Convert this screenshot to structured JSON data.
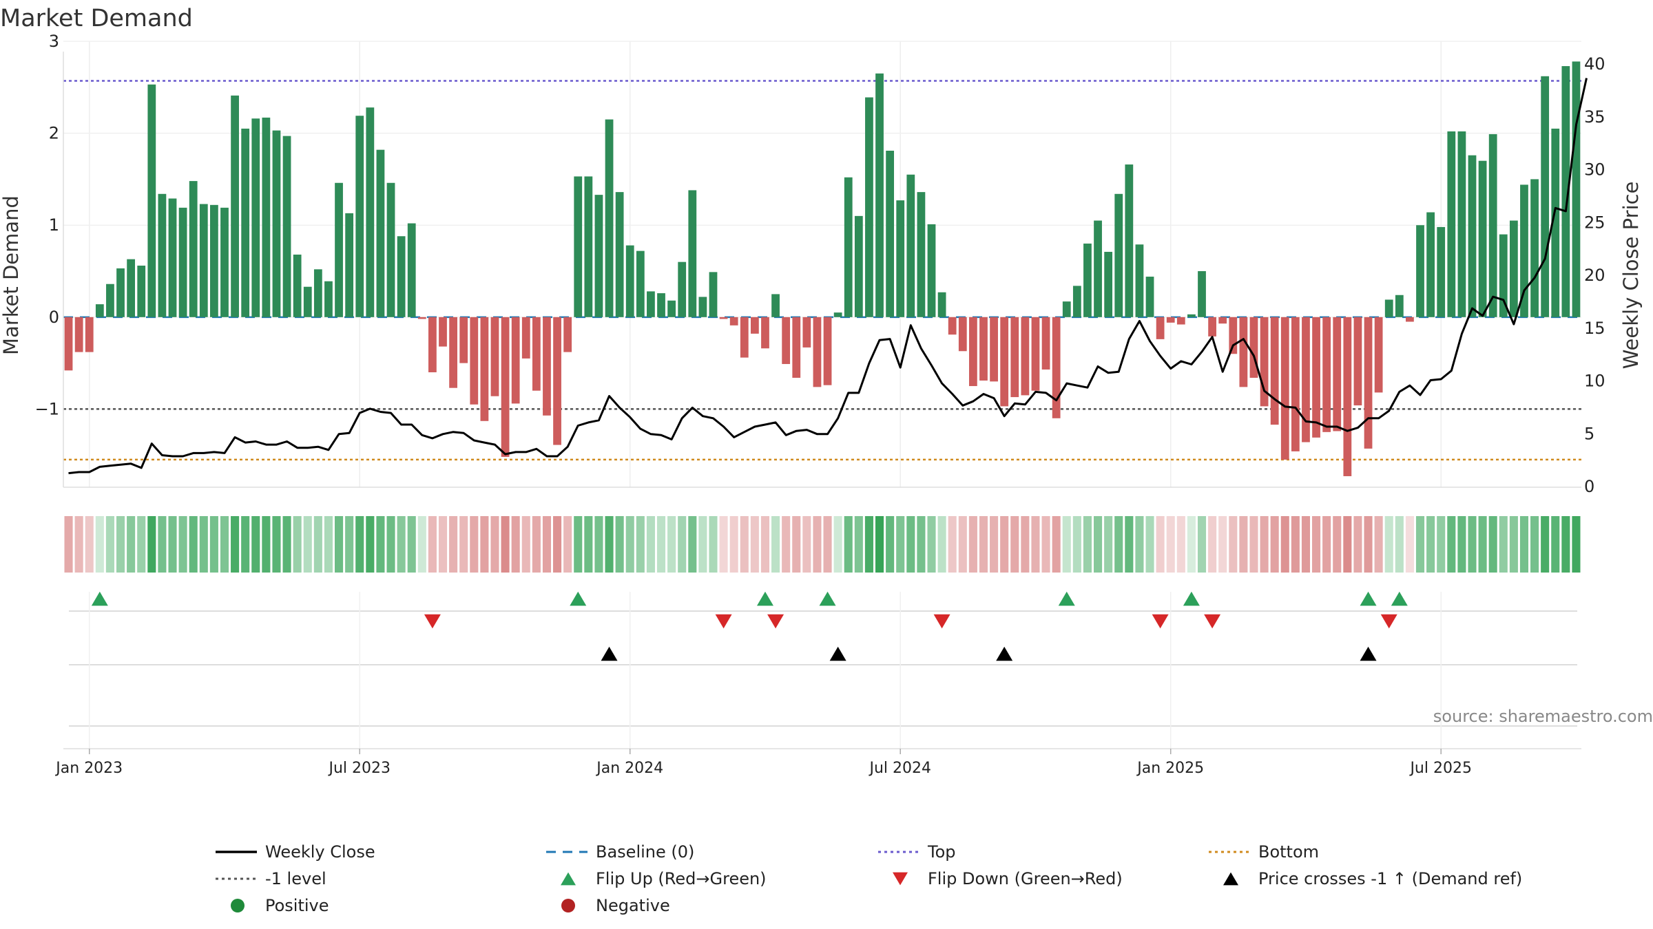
{
  "chart_data": {
    "type": "bar+line",
    "title": "Market Demand",
    "ylabel_left": "Market Demand",
    "ylabel_right": "Weekly Close Price",
    "ylim_left": [
      -1.85,
      3.0
    ],
    "ylim_right": [
      0,
      40
    ],
    "left_ticks": [
      3,
      2,
      1,
      0,
      -1
    ],
    "left_tick_labels": [
      "3",
      "2",
      "1",
      "0",
      "−1"
    ],
    "right_ticks": [
      0,
      5,
      10,
      15,
      20,
      25,
      30,
      35,
      40
    ],
    "x_tick_labels": [
      "Jan 2023",
      "Jul 2023",
      "Jan 2024",
      "Jul 2024",
      "Jan 2025",
      "Jul 2025"
    ],
    "x_tick_week_index": [
      2,
      28,
      54,
      80,
      106,
      132
    ],
    "reference_lines": {
      "top": 2.57,
      "bottom": -1.55,
      "minus_one": -1.0,
      "baseline": 0
    },
    "demand_weekly": [
      -0.58,
      -0.38,
      -0.38,
      0.14,
      0.36,
      0.53,
      0.63,
      0.56,
      2.53,
      1.34,
      1.29,
      1.19,
      1.48,
      1.23,
      1.22,
      1.19,
      2.41,
      2.05,
      2.16,
      2.17,
      2.03,
      1.97,
      0.68,
      0.33,
      0.52,
      0.39,
      1.46,
      1.13,
      2.19,
      2.28,
      1.82,
      1.46,
      0.88,
      1.02,
      -0.02,
      -0.6,
      -0.32,
      -0.77,
      -0.5,
      -0.95,
      -1.13,
      -0.86,
      -1.52,
      -0.94,
      -0.45,
      -0.8,
      -1.07,
      -1.39,
      -0.38,
      1.53,
      1.53,
      1.33,
      2.15,
      1.36,
      0.78,
      0.72,
      0.28,
      0.26,
      0.18,
      0.6,
      1.38,
      0.22,
      0.49,
      -0.02,
      -0.09,
      -0.44,
      -0.18,
      -0.34,
      0.25,
      -0.51,
      -0.66,
      -0.33,
      -0.76,
      -0.74,
      0.05,
      1.52,
      1.1,
      2.39,
      2.65,
      1.81,
      1.27,
      1.55,
      1.36,
      1.01,
      0.27,
      -0.19,
      -0.37,
      -0.75,
      -0.69,
      -0.7,
      -0.97,
      -0.87,
      -0.85,
      -0.8,
      -0.57,
      -1.1,
      0.17,
      0.34,
      0.8,
      1.05,
      0.71,
      1.34,
      1.66,
      0.79,
      0.44,
      -0.24,
      -0.06,
      -0.08,
      0.03,
      0.5,
      -0.21,
      -0.07,
      -0.4,
      -0.76,
      -0.66,
      -0.97,
      -1.17,
      -1.55,
      -1.46,
      -1.36,
      -1.31,
      -1.25,
      -1.24,
      -1.73,
      -0.96,
      -1.43,
      -0.82,
      0.19,
      0.24,
      -0.05,
      1.0,
      1.14,
      0.98,
      2.02,
      2.02,
      1.76,
      1.7,
      1.99,
      0.9,
      1.05,
      1.44,
      1.5,
      2.62,
      2.05,
      2.73,
      2.78
    ],
    "close_weekly": [
      1.2,
      1.3,
      1.3,
      1.8,
      1.9,
      2.0,
      2.1,
      1.7,
      4.0,
      2.9,
      2.8,
      2.8,
      3.1,
      3.1,
      3.2,
      3.1,
      4.6,
      4.1,
      4.2,
      3.9,
      3.9,
      4.2,
      3.6,
      3.6,
      3.7,
      3.4,
      4.9,
      5.0,
      6.9,
      7.3,
      7.0,
      6.9,
      5.8,
      5.8,
      4.8,
      4.5,
      4.9,
      5.1,
      5.0,
      4.3,
      4.1,
      3.9,
      3.0,
      3.2,
      3.2,
      3.5,
      2.8,
      2.8,
      3.7,
      5.7,
      6.0,
      6.2,
      8.5,
      7.4,
      6.5,
      5.4,
      4.9,
      4.8,
      4.4,
      6.4,
      7.4,
      6.6,
      6.4,
      5.6,
      4.6,
      5.1,
      5.6,
      5.8,
      6.0,
      4.8,
      5.2,
      5.3,
      4.9,
      4.9,
      6.4,
      8.8,
      8.8,
      11.6,
      13.8,
      13.9,
      11.2,
      15.2,
      13.0,
      11.4,
      9.7,
      8.7,
      7.6,
      8.0,
      8.7,
      8.3,
      6.6,
      7.8,
      7.7,
      8.9,
      8.8,
      8.1,
      9.7,
      9.5,
      9.3,
      11.3,
      10.7,
      10.8,
      13.9,
      15.6,
      13.7,
      12.3,
      11.1,
      11.8,
      11.5,
      12.7,
      14.1,
      10.8,
      13.3,
      13.9,
      12.3,
      9.0,
      8.2,
      7.5,
      7.4,
      6.1,
      6.0,
      5.6,
      5.6,
      5.2,
      5.5,
      6.4,
      6.4,
      7.1,
      8.9,
      9.5,
      8.6,
      10.0,
      10.1,
      10.9,
      14.4,
      16.8,
      16.1,
      17.9,
      17.6,
      15.3,
      18.5,
      19.7,
      21.5,
      26.3,
      26.0,
      34.2,
      38.6
    ],
    "heat_strip_levels": [
      -0.4,
      -0.3,
      -0.2,
      0.1,
      0.3,
      0.4,
      0.5,
      0.4,
      0.9,
      0.6,
      0.6,
      0.55,
      0.7,
      0.6,
      0.6,
      0.55,
      0.85,
      0.75,
      0.8,
      0.8,
      0.75,
      0.75,
      0.4,
      0.25,
      0.35,
      0.3,
      0.65,
      0.55,
      0.8,
      0.85,
      0.7,
      0.65,
      0.5,
      0.55,
      0.1,
      -0.3,
      -0.25,
      -0.35,
      -0.3,
      -0.4,
      -0.45,
      -0.4,
      -0.6,
      -0.45,
      -0.3,
      -0.4,
      -0.45,
      -0.55,
      -0.3,
      0.65,
      0.65,
      0.6,
      0.8,
      0.6,
      0.45,
      0.4,
      0.25,
      0.2,
      0.2,
      0.35,
      0.6,
      0.2,
      0.3,
      -0.1,
      -0.15,
      -0.25,
      -0.2,
      -0.25,
      0.2,
      -0.3,
      -0.35,
      -0.25,
      -0.35,
      -0.35,
      0.1,
      0.65,
      0.55,
      0.85,
      0.95,
      0.7,
      0.55,
      0.65,
      0.6,
      0.45,
      0.2,
      -0.2,
      -0.25,
      -0.35,
      -0.35,
      -0.35,
      -0.4,
      -0.4,
      -0.4,
      -0.35,
      -0.3,
      -0.45,
      0.15,
      0.25,
      0.4,
      0.5,
      0.4,
      0.6,
      0.7,
      0.45,
      0.3,
      -0.15,
      -0.1,
      -0.1,
      0.05,
      0.35,
      -0.15,
      -0.1,
      -0.25,
      -0.35,
      -0.3,
      -0.4,
      -0.45,
      -0.55,
      -0.5,
      -0.5,
      -0.45,
      -0.45,
      -0.45,
      -0.6,
      -0.4,
      -0.5,
      -0.35,
      0.15,
      0.2,
      -0.05,
      0.5,
      0.5,
      0.45,
      0.7,
      0.7,
      0.65,
      0.65,
      0.7,
      0.45,
      0.5,
      0.6,
      0.6,
      0.85,
      0.75,
      0.85,
      0.9
    ],
    "flip_up_weeks": [
      3,
      49,
      67,
      73,
      96,
      108,
      125,
      128
    ],
    "flip_down_weeks": [
      35,
      63,
      68,
      84,
      105,
      110,
      127
    ],
    "price_cross_weeks": [
      52,
      74,
      90,
      125
    ],
    "legend": [
      {
        "label": "Weekly Close",
        "style": "line",
        "color": "#000000"
      },
      {
        "label": "Baseline (0)",
        "style": "dash",
        "color": "#1f77b4"
      },
      {
        "label": "Top",
        "style": "dot",
        "color": "#6a5acd"
      },
      {
        "label": "Bottom",
        "style": "dot",
        "color": "#d08a1c"
      },
      {
        "label": "-1 level",
        "style": "dot",
        "color": "#555555"
      },
      {
        "label": "Flip Up (Red→Green)",
        "style": "tri-up",
        "color": "#2ca05a"
      },
      {
        "label": "Flip Down (Green→Red)",
        "style": "tri-down",
        "color": "#d62728"
      },
      {
        "label": "Price crosses -1 ↑ (Demand ref)",
        "style": "tri-up",
        "color": "#000000"
      },
      {
        "label": "Positive",
        "style": "circle",
        "color": "#1f8a3a"
      },
      {
        "label": "Negative",
        "style": "circle",
        "color": "#b22222"
      }
    ],
    "source_note": "source: sharemaestro.com"
  },
  "colors": {
    "positive_bar": "#2e8b57",
    "negative_bar": "#cd5c5c",
    "close_line": "#000000",
    "baseline": "#1f77b4",
    "top": "#6a5acd",
    "bottom": "#d08a1c",
    "minus_one": "#555555",
    "flip_up": "#2ca05a",
    "flip_down": "#d62728",
    "cross": "#000000"
  }
}
